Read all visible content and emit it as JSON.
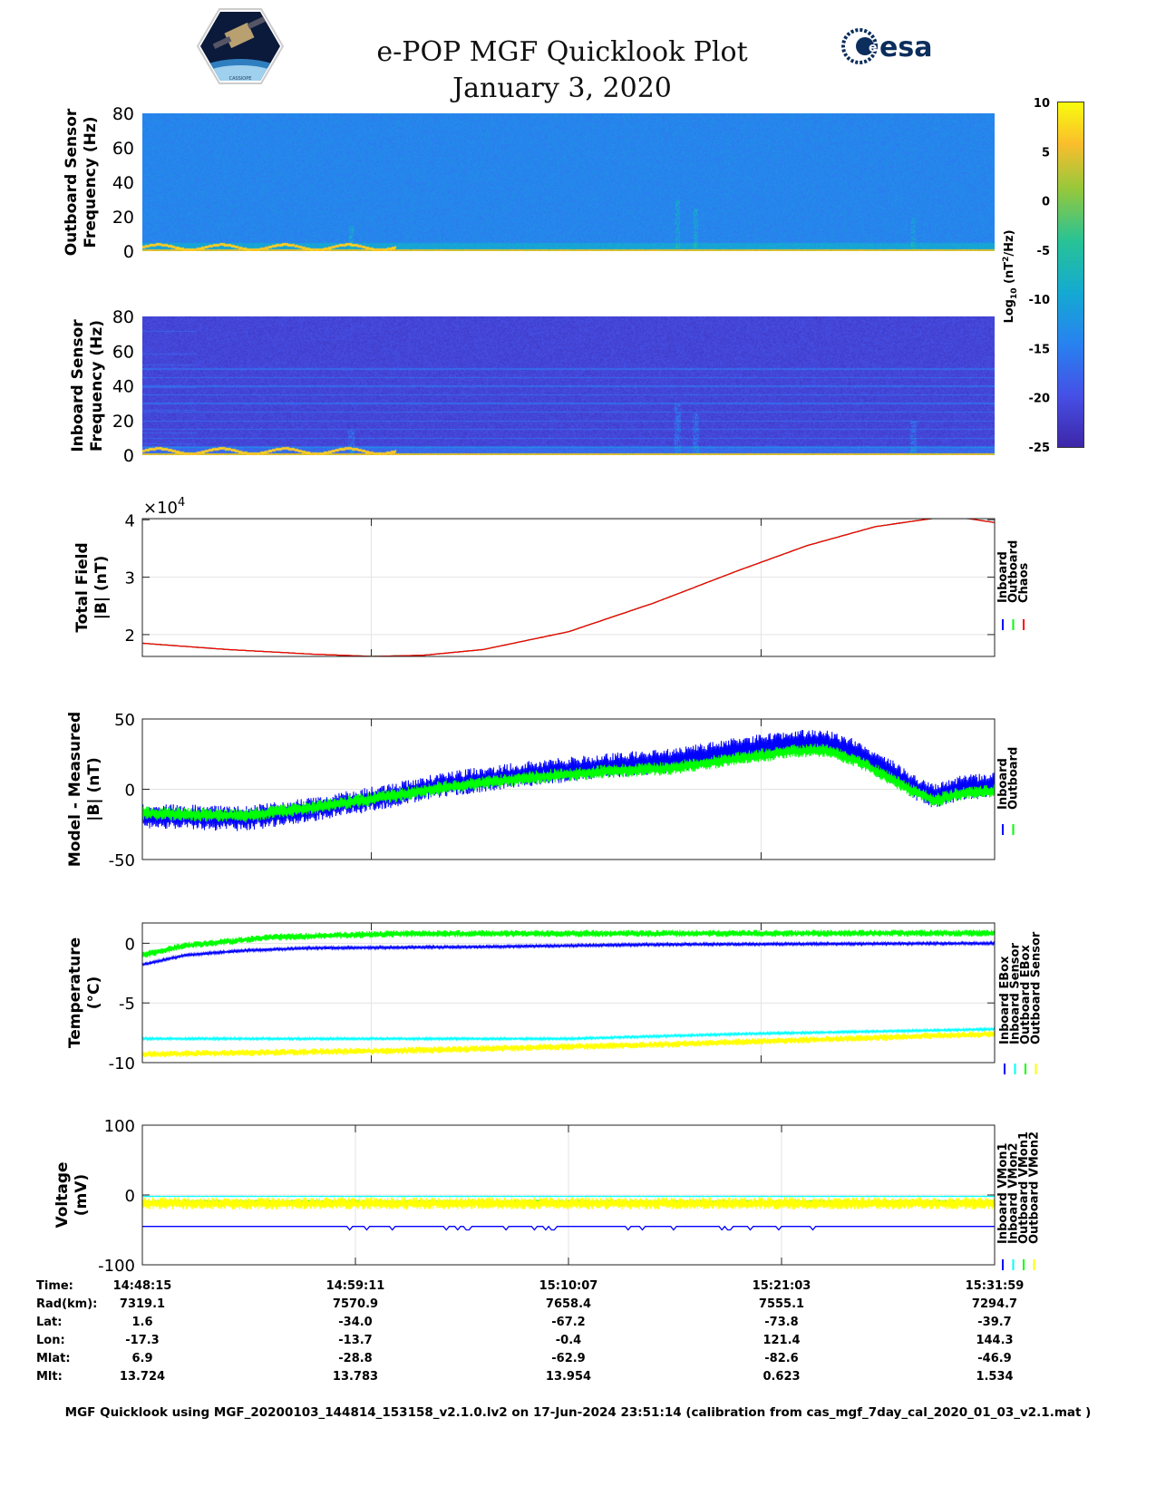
{
  "header": {
    "title": "e-POP MGF Quicklook Plot",
    "date": "January 3, 2020",
    "left_logo": "CASSIOPE",
    "right_logo": "esa"
  },
  "colors": {
    "blue": "#0000ff",
    "green": "#00ff00",
    "red": "#ff0000",
    "cyan": "#00ffff",
    "yellow": "#ffff00"
  },
  "chart_data": [
    {
      "type": "heatmap",
      "id": "outboard_spectrogram",
      "ylabel": [
        "Outboard Sensor",
        "Frequency (Hz)"
      ],
      "yticks": [
        0,
        20,
        40,
        60,
        80
      ],
      "ylim": [
        0,
        80
      ],
      "background_log_power": -14,
      "features": "strong low-frequency (0-5 Hz) power ~5, bursts near 14:56, 15:04, 15:27"
    },
    {
      "type": "heatmap",
      "id": "inboard_spectrogram",
      "ylabel": [
        "Inboard Sensor",
        "Frequency (Hz)"
      ],
      "yticks": [
        0,
        20,
        40,
        60,
        80
      ],
      "ylim": [
        0,
        80
      ],
      "background_log_power": -21,
      "interference_lines_hz": [
        5,
        10,
        15,
        20,
        25,
        30,
        35,
        40,
        45,
        50
      ]
    },
    {
      "type": "colorbar",
      "label": "Log10 (nT2/Hz)",
      "label_main": "Log",
      "label_sub": "10",
      "label_rest": " (nT",
      "label_sup": "2",
      "label_end": "/Hz)",
      "ticks": [
        10,
        5,
        0,
        -5,
        -10,
        -15,
        -20,
        -25
      ],
      "range": [
        -25,
        10
      ]
    },
    {
      "type": "line",
      "id": "total_field",
      "ylabel": [
        "Total Field",
        "|B| (nT)"
      ],
      "multiplier": "×10",
      "multiplier_exp": "4",
      "yticks": [
        2,
        3,
        4
      ],
      "ylim": [
        1.62,
        4.02
      ],
      "legend": [
        "Inboard",
        "Outboard",
        "Chaos"
      ],
      "series": [
        {
          "name": "Inboard",
          "color": "#0000ff",
          "noise": 0,
          "points": [
            [
              0,
              1.85
            ],
            [
              0.1,
              1.74
            ],
            [
              0.2,
              1.66
            ],
            [
              0.27,
              1.62
            ],
            [
              0.33,
              1.64
            ],
            [
              0.4,
              1.74
            ],
            [
              0.5,
              2.05
            ],
            [
              0.6,
              2.55
            ],
            [
              0.7,
              3.12
            ],
            [
              0.78,
              3.55
            ],
            [
              0.86,
              3.88
            ],
            [
              0.93,
              4.03
            ],
            [
              0.97,
              4.02
            ],
            [
              1,
              3.95
            ]
          ]
        },
        {
          "name": "Outboard",
          "color": "#00ff00",
          "noise": 0,
          "points": [
            [
              0,
              1.85
            ],
            [
              0.1,
              1.74
            ],
            [
              0.2,
              1.66
            ],
            [
              0.27,
              1.62
            ],
            [
              0.33,
              1.64
            ],
            [
              0.4,
              1.74
            ],
            [
              0.5,
              2.05
            ],
            [
              0.6,
              2.55
            ],
            [
              0.7,
              3.12
            ],
            [
              0.78,
              3.55
            ],
            [
              0.86,
              3.88
            ],
            [
              0.93,
              4.03
            ],
            [
              0.97,
              4.02
            ],
            [
              1,
              3.95
            ]
          ]
        },
        {
          "name": "Chaos",
          "color": "#ff0000",
          "noise": 0,
          "points": [
            [
              0,
              1.85
            ],
            [
              0.1,
              1.74
            ],
            [
              0.2,
              1.66
            ],
            [
              0.27,
              1.62
            ],
            [
              0.33,
              1.64
            ],
            [
              0.4,
              1.74
            ],
            [
              0.5,
              2.05
            ],
            [
              0.6,
              2.55
            ],
            [
              0.7,
              3.12
            ],
            [
              0.78,
              3.55
            ],
            [
              0.86,
              3.88
            ],
            [
              0.93,
              4.03
            ],
            [
              0.97,
              4.02
            ],
            [
              1,
              3.95
            ]
          ]
        }
      ]
    },
    {
      "type": "line",
      "id": "model_minus_measured",
      "ylabel": [
        "Model - Measured",
        "|B| (nT)"
      ],
      "yticks": [
        -50,
        0,
        50
      ],
      "ylim": [
        -50,
        50
      ],
      "legend": [
        "Inboard",
        "Outboard"
      ],
      "series": [
        {
          "name": "Inboard",
          "color": "#0000ff",
          "noise": 9,
          "points": [
            [
              0,
              -19
            ],
            [
              0.12,
              -21
            ],
            [
              0.2,
              -14
            ],
            [
              0.28,
              -6
            ],
            [
              0.35,
              3
            ],
            [
              0.45,
              11
            ],
            [
              0.55,
              17
            ],
            [
              0.62,
              20
            ],
            [
              0.7,
              28
            ],
            [
              0.76,
              33
            ],
            [
              0.8,
              34
            ],
            [
              0.84,
              26
            ],
            [
              0.88,
              12
            ],
            [
              0.9,
              3
            ],
            [
              0.93,
              -5
            ],
            [
              0.96,
              1
            ],
            [
              1,
              3
            ]
          ]
        },
        {
          "name": "Outboard",
          "color": "#00ff00",
          "noise": 5,
          "points": [
            [
              0,
              -17
            ],
            [
              0.12,
              -19
            ],
            [
              0.2,
              -13
            ],
            [
              0.28,
              -6
            ],
            [
              0.35,
              1
            ],
            [
              0.45,
              8
            ],
            [
              0.55,
              13
            ],
            [
              0.62,
              15
            ],
            [
              0.7,
              22
            ],
            [
              0.76,
              27
            ],
            [
              0.8,
              28
            ],
            [
              0.84,
              20
            ],
            [
              0.88,
              7
            ],
            [
              0.9,
              0
            ],
            [
              0.93,
              -8
            ],
            [
              0.96,
              -3
            ],
            [
              1,
              -1
            ]
          ]
        }
      ]
    },
    {
      "type": "line",
      "id": "temperature",
      "ylabel": [
        "Temperature",
        "(°C)"
      ],
      "yticks": [
        -10,
        -5,
        0
      ],
      "ylim": [
        -10,
        1.7
      ],
      "legend": [
        "Inboard EBox",
        "Inboard Sensor",
        "Outboard EBox",
        "Outboard Sensor"
      ],
      "series": [
        {
          "name": "Inboard EBox",
          "color": "#0000ff",
          "noise": 0.12,
          "points": [
            [
              0,
              -1.8
            ],
            [
              0.05,
              -1.0
            ],
            [
              0.12,
              -0.6
            ],
            [
              0.2,
              -0.4
            ],
            [
              0.4,
              -0.3
            ],
            [
              0.6,
              -0.1
            ],
            [
              1,
              0
            ]
          ]
        },
        {
          "name": "Inboard Sensor",
          "color": "#00ffff",
          "noise": 0.1,
          "points": [
            [
              0,
              -8
            ],
            [
              0.5,
              -8
            ],
            [
              0.7,
              -7.6
            ],
            [
              1,
              -7.2
            ]
          ]
        },
        {
          "name": "Outboard EBox",
          "color": "#00ff00",
          "noise": 0.3,
          "points": [
            [
              0,
              -1
            ],
            [
              0.05,
              -0.2
            ],
            [
              0.15,
              0.5
            ],
            [
              0.3,
              0.8
            ],
            [
              1,
              0.85
            ]
          ]
        },
        {
          "name": "Outboard Sensor",
          "color": "#ffff00",
          "noise": 0.3,
          "points": [
            [
              0,
              -9.3
            ],
            [
              0.3,
              -9
            ],
            [
              0.6,
              -8.5
            ],
            [
              1,
              -7.6
            ]
          ]
        }
      ]
    },
    {
      "type": "line",
      "id": "voltage",
      "ylabel": [
        "Voltage",
        "(mV)"
      ],
      "yticks": [
        -100,
        0,
        100
      ],
      "ylim": [
        -100,
        100
      ],
      "legend": [
        "Inboard VMon1",
        "Inboard VMon2",
        "Outboard VMon1",
        "Outboard VMon2"
      ],
      "series": [
        {
          "name": "Inboard VMon1",
          "color": "#0000ff",
          "noise": 0,
          "spikes": -5,
          "points": [
            [
              0,
              -45
            ],
            [
              1,
              -45
            ]
          ]
        },
        {
          "name": "Inboard VMon2",
          "color": "#00ffff",
          "noise": 0.5,
          "points": [
            [
              0,
              -2
            ],
            [
              1,
              -2
            ]
          ]
        },
        {
          "name": "Outboard VMon1",
          "color": "#00ff00",
          "noise": 3,
          "points": [
            [
              0,
              -10
            ],
            [
              1,
              -10
            ]
          ]
        },
        {
          "name": "Outboard VMon2",
          "color": "#ffff00",
          "noise": 9,
          "points": [
            [
              0,
              -12
            ],
            [
              1,
              -12
            ]
          ]
        }
      ]
    }
  ],
  "time_axis": {
    "start": "14:48:15",
    "end": "15:31:59",
    "gridlines_upper": [
      "15:00:00",
      "15:20:00"
    ]
  },
  "ephemeris": {
    "rows": [
      {
        "label": "Time:",
        "values": [
          "14:48:15",
          "14:59:11",
          "15:10:07",
          "15:21:03",
          "15:31:59"
        ]
      },
      {
        "label": "Rad(km):",
        "values": [
          "7319.1",
          "7570.9",
          "7658.4",
          "7555.1",
          "7294.7"
        ]
      },
      {
        "label": "Lat:",
        "values": [
          "1.6",
          "-34.0",
          "-67.2",
          "-73.8",
          "-39.7"
        ]
      },
      {
        "label": "Lon:",
        "values": [
          "-17.3",
          "-13.7",
          "-0.4",
          "121.4",
          "144.3"
        ]
      },
      {
        "label": "Mlat:",
        "values": [
          "6.9",
          "-28.8",
          "-62.9",
          "-82.6",
          "-46.9"
        ]
      },
      {
        "label": "Mlt:",
        "values": [
          "13.724",
          "13.783",
          "13.954",
          "0.623",
          "1.534"
        ]
      }
    ]
  },
  "footer": "MGF Quicklook using MGF_20200103_144814_153158_v2.1.0.lv2 on 17-Jun-2024 23:51:14 (calibration from cas_mgf_7day_cal_2020_01_03_v2.1.mat )"
}
